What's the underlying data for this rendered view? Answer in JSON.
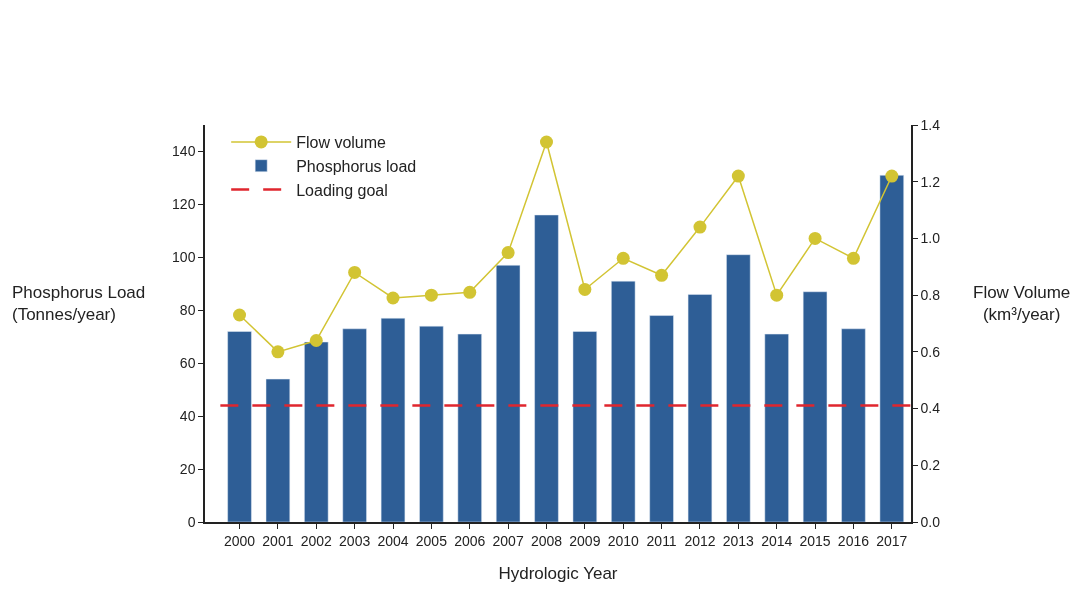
{
  "chart_data": {
    "type": "bar",
    "xlabel": "Hydrologic Year",
    "ylabel": "Phosphorus Load\n(Tonnes/year)",
    "y2label": "Flow Volume\n(km³/year)",
    "categories": [
      "2000",
      "2001",
      "2002",
      "2003",
      "2004",
      "2005",
      "2006",
      "2007",
      "2008",
      "2009",
      "2010",
      "2011",
      "2012",
      "2013",
      "2014",
      "2015",
      "2016",
      "2017"
    ],
    "series": [
      {
        "name": "Flow volume",
        "type": "line",
        "axis": "y2",
        "color": "#d2c433",
        "marker": "circle",
        "values": [
          0.73,
          0.6,
          0.64,
          0.88,
          0.79,
          0.8,
          0.81,
          0.95,
          1.34,
          0.82,
          0.93,
          0.87,
          1.04,
          1.22,
          0.8,
          1.0,
          0.93,
          1.22
        ]
      },
      {
        "name": "Phosphorus load",
        "color": "#2e5e96",
        "values": [
          72,
          54,
          68,
          73,
          77,
          74,
          71,
          97,
          116,
          72,
          91,
          78,
          86,
          101,
          71,
          87,
          73,
          131
        ]
      }
    ],
    "ref_lines": [
      {
        "axis": "y",
        "value": 44,
        "label": "Loading goal",
        "color": "#e0262e",
        "line_style": "dashed"
      }
    ],
    "ylim": [
      0,
      150
    ],
    "yticks": [
      0,
      20,
      40,
      60,
      80,
      100,
      120,
      140
    ],
    "y2lim": [
      0,
      1.4
    ],
    "y2ticks": [
      {
        "value": 0,
        "label": "0.0"
      },
      {
        "value": 0.2,
        "label": "0.2"
      },
      {
        "value": 0.4,
        "label": "0.4"
      },
      {
        "value": 0.6,
        "label": "0.6"
      },
      {
        "value": 0.8,
        "label": "0.8"
      },
      {
        "value": 1.0,
        "label": "1.0"
      },
      {
        "value": 1.2,
        "label": "1.2"
      },
      {
        "value": 1.4,
        "label": "1.4"
      }
    ],
    "legend": "top left"
  }
}
